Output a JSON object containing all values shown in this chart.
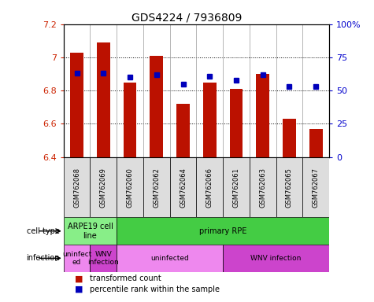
{
  "title": "GDS4224 / 7936809",
  "samples": [
    "GSM762068",
    "GSM762069",
    "GSM762060",
    "GSM762062",
    "GSM762064",
    "GSM762066",
    "GSM762061",
    "GSM762063",
    "GSM762065",
    "GSM762067"
  ],
  "transformed_counts": [
    7.03,
    7.09,
    6.85,
    7.01,
    6.72,
    6.85,
    6.81,
    6.9,
    6.63,
    6.57
  ],
  "percentile_ranks": [
    63,
    63,
    60,
    62,
    55,
    61,
    58,
    62,
    53,
    53
  ],
  "ylim": [
    6.4,
    7.2
  ],
  "yticks": [
    6.4,
    6.6,
    6.8,
    7.0,
    7.2
  ],
  "ytick_labels": [
    "6.4",
    "6.6",
    "6.8",
    "7",
    "7.2"
  ],
  "y2ticks": [
    0,
    25,
    50,
    75,
    100
  ],
  "y2labels": [
    "0",
    "25",
    "50",
    "75",
    "100%"
  ],
  "bar_color": "#bb1100",
  "dot_color": "#0000bb",
  "bar_bottom": 6.4,
  "cell_type_label": "cell type",
  "infection_label": "infection",
  "cell_type_groups": [
    {
      "label": "ARPE19 cell\nline",
      "start": 0,
      "end": 2,
      "color": "#88ee88"
    },
    {
      "label": "primary RPE",
      "start": 2,
      "end": 10,
      "color": "#44cc44"
    }
  ],
  "infection_groups": [
    {
      "label": "uninfect\ned",
      "start": 0,
      "end": 1,
      "color": "#ee88ee"
    },
    {
      "label": "WNV\ninfection",
      "start": 1,
      "end": 2,
      "color": "#cc44cc"
    },
    {
      "label": "uninfected",
      "start": 2,
      "end": 6,
      "color": "#ee88ee"
    },
    {
      "label": "WNV infection",
      "start": 6,
      "end": 10,
      "color": "#cc44cc"
    }
  ],
  "legend_items": [
    {
      "label": "transformed count",
      "color": "#bb1100"
    },
    {
      "label": "percentile rank within the sample",
      "color": "#0000bb"
    }
  ],
  "tick_label_color_left": "#cc2200",
  "tick_label_color_right": "#0000cc",
  "sample_box_color": "#dddddd"
}
